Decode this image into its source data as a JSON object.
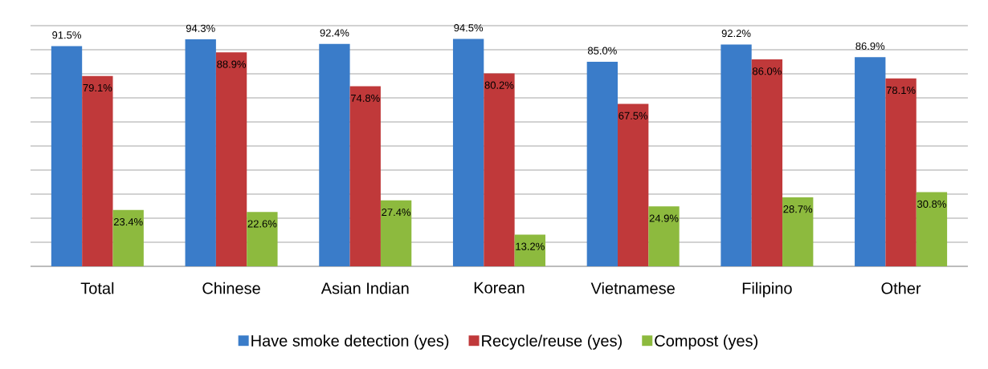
{
  "chart_data": {
    "type": "bar",
    "categories": [
      "Total",
      "Chinese",
      "Asian Indian",
      "Korean",
      "Vietnamese",
      "Filipino",
      "Other"
    ],
    "series": [
      {
        "name": "Have smoke detection (yes)",
        "color": "#3a7cc9",
        "values": [
          91.5,
          94.3,
          92.4,
          94.5,
          85.0,
          92.2,
          86.9
        ],
        "value_labels": [
          "91.5%",
          "94.3%",
          "92.4%",
          "94.5%",
          "85.0%",
          "92.2%",
          "86.9%"
        ]
      },
      {
        "name": "Recycle/reuse (yes)",
        "color": "#c0393a",
        "values": [
          79.1,
          88.9,
          74.8,
          80.2,
          67.5,
          86.0,
          78.1
        ],
        "value_labels": [
          "79.1%",
          "88.9%",
          "74.8%",
          "80.2%",
          "67.5%",
          "86.0%",
          "78.1%"
        ]
      },
      {
        "name": "Compost (yes)",
        "color": "#8dba3e",
        "values": [
          23.4,
          22.6,
          27.4,
          13.2,
          24.9,
          28.7,
          30.8
        ],
        "value_labels": [
          "23.4%",
          "22.6%",
          "27.4%",
          "13.2%",
          "24.9%",
          "28.7%",
          "30.8%"
        ]
      }
    ],
    "ylim": [
      0,
      100
    ],
    "tick_labels": "x",
    "grid": "y",
    "legend": "bottom"
  }
}
